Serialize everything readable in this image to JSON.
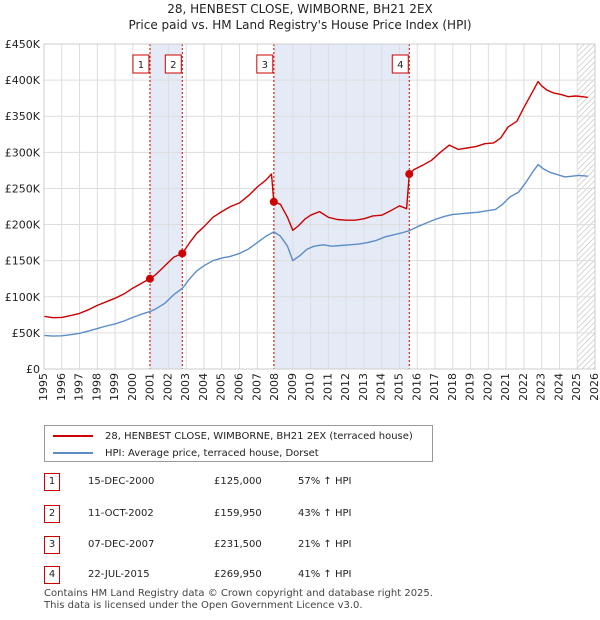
{
  "title_line1": "28, HENBEST CLOSE, WIMBORNE, BH21 2EX",
  "title_line2": "Price paid vs. HM Land Registry's House Price Index (HPI)",
  "colors": {
    "price_line": "#cc0000",
    "hpi_line": "#5b8cc8",
    "shade": "#e4ebf7",
    "grid": "#dddddd",
    "vline": "#cc0000"
  },
  "legend": [
    {
      "label": "28, HENBEST CLOSE, WIMBORNE, BH21 2EX (terraced house)",
      "color": "#cc0000"
    },
    {
      "label": "HPI: Average price, terraced house, Dorset",
      "color": "#5b8cc8"
    }
  ],
  "sales": [
    {
      "num": "1",
      "date": "15-DEC-2000",
      "price": "£125,000",
      "hpi": "57% ↑ HPI"
    },
    {
      "num": "2",
      "date": "11-OCT-2002",
      "price": "£159,950",
      "hpi": "43% ↑ HPI"
    },
    {
      "num": "3",
      "date": "07-DEC-2007",
      "price": "£231,500",
      "hpi": "21% ↑ HPI"
    },
    {
      "num": "4",
      "date": "22-JUL-2015",
      "price": "£269,950",
      "hpi": "41% ↑ HPI"
    }
  ],
  "footer_line1": "Contains HM Land Registry data © Crown copyright and database right 2025.",
  "footer_line2": "This data is licensed under the Open Government Licence v3.0.",
  "chart_data": {
    "type": "line",
    "title": "28, HENBEST CLOSE, WIMBORNE, BH21 2EX — Price paid vs. HM Land Registry's House Price Index (HPI)",
    "xlim": [
      1995,
      2026
    ],
    "ylim": [
      0,
      450000
    ],
    "x_ticks": [
      1995,
      1996,
      1997,
      1998,
      1999,
      2000,
      2001,
      2002,
      2003,
      2004,
      2005,
      2006,
      2007,
      2008,
      2009,
      2010,
      2011,
      2012,
      2013,
      2014,
      2015,
      2016,
      2017,
      2018,
      2019,
      2020,
      2021,
      2022,
      2023,
      2024,
      2025,
      2026
    ],
    "y_ticks": [
      {
        "value": 0,
        "label": "£0"
      },
      {
        "value": 50000,
        "label": "£50K"
      },
      {
        "value": 100000,
        "label": "£100K"
      },
      {
        "value": 150000,
        "label": "£150K"
      },
      {
        "value": 200000,
        "label": "£200K"
      },
      {
        "value": 250000,
        "label": "£250K"
      },
      {
        "value": 300000,
        "label": "£300K"
      },
      {
        "value": 350000,
        "label": "£350K"
      },
      {
        "value": 400000,
        "label": "£400K"
      },
      {
        "value": 450000,
        "label": "£450K"
      }
    ],
    "shaded_periods": [
      [
        2000.96,
        2002.78
      ],
      [
        2007.93,
        2015.55
      ]
    ],
    "hatched_from": 2025.0,
    "sale_markers": [
      {
        "label": "1",
        "x": 2000.96,
        "y": 125000
      },
      {
        "label": "2",
        "x": 2002.78,
        "y": 159950
      },
      {
        "label": "3",
        "x": 2007.93,
        "y": 231500
      },
      {
        "label": "4",
        "x": 2015.55,
        "y": 269950
      }
    ],
    "series": [
      {
        "name": "28, HENBEST CLOSE, WIMBORNE, BH21 2EX (terraced house)",
        "color": "#cc0000",
        "points": [
          [
            1995.0,
            73000
          ],
          [
            1995.5,
            71000
          ],
          [
            1996.0,
            71500
          ],
          [
            1996.5,
            74000
          ],
          [
            1997.0,
            77000
          ],
          [
            1997.5,
            82000
          ],
          [
            1998.0,
            88000
          ],
          [
            1998.5,
            93000
          ],
          [
            1999.0,
            98000
          ],
          [
            1999.5,
            104000
          ],
          [
            2000.0,
            112000
          ],
          [
            2000.5,
            119000
          ],
          [
            2000.96,
            125000
          ],
          [
            2001.3,
            131000
          ],
          [
            2001.8,
            143000
          ],
          [
            2002.3,
            155000
          ],
          [
            2002.78,
            159950
          ],
          [
            2003.2,
            175000
          ],
          [
            2003.6,
            188000
          ],
          [
            2004.0,
            197000
          ],
          [
            2004.5,
            210000
          ],
          [
            2005.0,
            218000
          ],
          [
            2005.5,
            225000
          ],
          [
            2006.0,
            230000
          ],
          [
            2006.5,
            240000
          ],
          [
            2007.0,
            252000
          ],
          [
            2007.5,
            262000
          ],
          [
            2007.8,
            270000
          ],
          [
            2007.93,
            231500
          ],
          [
            2008.3,
            228000
          ],
          [
            2008.7,
            210000
          ],
          [
            2009.0,
            192000
          ],
          [
            2009.3,
            198000
          ],
          [
            2009.7,
            208000
          ],
          [
            2010.0,
            213000
          ],
          [
            2010.5,
            218000
          ],
          [
            2011.0,
            210000
          ],
          [
            2011.5,
            207000
          ],
          [
            2012.0,
            206000
          ],
          [
            2012.5,
            206000
          ],
          [
            2013.0,
            208000
          ],
          [
            2013.5,
            212000
          ],
          [
            2014.0,
            213000
          ],
          [
            2014.5,
            219000
          ],
          [
            2015.0,
            226000
          ],
          [
            2015.4,
            222000
          ],
          [
            2015.55,
            269950
          ],
          [
            2015.8,
            276000
          ],
          [
            2016.3,
            282000
          ],
          [
            2016.8,
            289000
          ],
          [
            2017.3,
            300000
          ],
          [
            2017.8,
            310000
          ],
          [
            2018.3,
            304000
          ],
          [
            2018.8,
            306000
          ],
          [
            2019.3,
            308000
          ],
          [
            2019.8,
            312000
          ],
          [
            2020.3,
            313000
          ],
          [
            2020.7,
            320000
          ],
          [
            2021.1,
            335000
          ],
          [
            2021.6,
            343000
          ],
          [
            2022.0,
            362000
          ],
          [
            2022.4,
            380000
          ],
          [
            2022.8,
            398000
          ],
          [
            2023.0,
            392000
          ],
          [
            2023.3,
            386000
          ],
          [
            2023.7,
            382000
          ],
          [
            2024.1,
            380000
          ],
          [
            2024.5,
            377000
          ],
          [
            2024.9,
            378000
          ],
          [
            2025.3,
            377000
          ],
          [
            2025.6,
            376000
          ]
        ]
      },
      {
        "name": "HPI: Average price, terraced house, Dorset",
        "color": "#5b8cc8",
        "points": [
          [
            1995.0,
            46500
          ],
          [
            1995.5,
            45500
          ],
          [
            1996.0,
            46000
          ],
          [
            1996.5,
            47500
          ],
          [
            1997.0,
            49500
          ],
          [
            1997.5,
            52500
          ],
          [
            1998.0,
            56000
          ],
          [
            1998.5,
            59500
          ],
          [
            1999.0,
            62500
          ],
          [
            1999.5,
            66500
          ],
          [
            2000.0,
            71500
          ],
          [
            2000.5,
            76000
          ],
          [
            2000.96,
            79500
          ],
          [
            2001.3,
            83500
          ],
          [
            2001.8,
            91000
          ],
          [
            2002.3,
            103000
          ],
          [
            2002.78,
            111500
          ],
          [
            2003.2,
            125000
          ],
          [
            2003.6,
            136000
          ],
          [
            2004.0,
            143000
          ],
          [
            2004.5,
            150000
          ],
          [
            2005.0,
            153500
          ],
          [
            2005.5,
            156000
          ],
          [
            2006.0,
            160000
          ],
          [
            2006.5,
            166000
          ],
          [
            2007.0,
            175000
          ],
          [
            2007.5,
            184000
          ],
          [
            2007.93,
            190000
          ],
          [
            2008.3,
            184000
          ],
          [
            2008.7,
            170000
          ],
          [
            2009.0,
            150000
          ],
          [
            2009.4,
            157000
          ],
          [
            2009.8,
            166000
          ],
          [
            2010.2,
            170000
          ],
          [
            2010.7,
            172000
          ],
          [
            2011.2,
            170000
          ],
          [
            2011.7,
            171000
          ],
          [
            2012.2,
            172000
          ],
          [
            2012.7,
            173000
          ],
          [
            2013.2,
            175000
          ],
          [
            2013.7,
            178000
          ],
          [
            2014.2,
            183000
          ],
          [
            2014.7,
            186000
          ],
          [
            2015.2,
            189000
          ],
          [
            2015.55,
            191500
          ],
          [
            2016.0,
            197000
          ],
          [
            2016.5,
            202000
          ],
          [
            2017.0,
            207000
          ],
          [
            2017.5,
            211000
          ],
          [
            2018.0,
            214000
          ],
          [
            2018.5,
            215000
          ],
          [
            2018.9,
            216000
          ],
          [
            2019.4,
            217000
          ],
          [
            2019.9,
            219000
          ],
          [
            2020.4,
            221000
          ],
          [
            2020.8,
            228000
          ],
          [
            2021.2,
            238000
          ],
          [
            2021.7,
            245000
          ],
          [
            2022.1,
            258000
          ],
          [
            2022.5,
            273000
          ],
          [
            2022.8,
            283000
          ],
          [
            2023.1,
            277000
          ],
          [
            2023.5,
            272000
          ],
          [
            2023.9,
            269000
          ],
          [
            2024.3,
            266000
          ],
          [
            2024.7,
            267000
          ],
          [
            2025.1,
            268000
          ],
          [
            2025.6,
            267000
          ]
        ]
      }
    ]
  }
}
